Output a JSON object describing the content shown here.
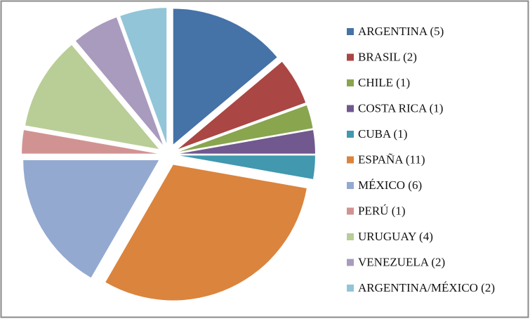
{
  "chart_data": {
    "type": "pie",
    "categories": [
      "ARGENTINA (5)",
      "BRASIL (2)",
      "CHILE (1)",
      "COSTA RICA (1)",
      "CUBA (1)",
      "ESPAÑA (11)",
      "MÉXICO (6)",
      "PERÚ (1)",
      "URUGUAY (4)",
      "VENEZUELA (2)",
      "ARGENTINA/MÉXICO (2)"
    ],
    "values": [
      5,
      2,
      1,
      1,
      1,
      11,
      6,
      1,
      4,
      2,
      2
    ],
    "colors": [
      "#4572a7",
      "#aa4643",
      "#89a54e",
      "#71588f",
      "#4198af",
      "#db843d",
      "#93a9d0",
      "#d19392",
      "#b9cd96",
      "#a99bbd",
      "#92c5d8"
    ],
    "legend": "right"
  }
}
